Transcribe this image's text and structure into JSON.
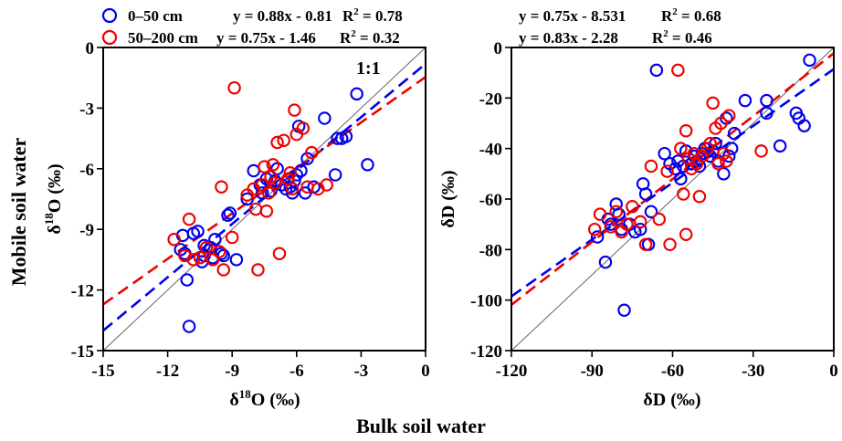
{
  "figure": {
    "shared_ylabel": "Mobile soil water",
    "shared_xlabel": "Bulk soil water"
  },
  "legend": {
    "items": [
      {
        "label": "0–50 cm",
        "color": "#0000ee",
        "equation": "y = 0.88x - 0.81",
        "r2_label": "R",
        "r2_value": " = 0.78"
      },
      {
        "label": "50–200 cm",
        "color": "#ee0000",
        "equation": "y = 0.75x - 1.46",
        "r2_label": "R",
        "r2_value": " = 0.32"
      }
    ]
  },
  "chart_data": [
    {
      "type": "scatter",
      "xlabel": "δ18O (‰)",
      "ylabel": "δ18O (‰)",
      "xlim": [
        -15,
        0
      ],
      "ylim": [
        -15,
        0
      ],
      "xticks": [
        "-15",
        "-12",
        "-9",
        "-6",
        "-3",
        "0"
      ],
      "yticks": [
        "-15",
        "-12",
        "-9",
        "-6",
        "-3",
        "0"
      ],
      "one_to_one_label": "1:1",
      "series": [
        {
          "name": "0–50 cm",
          "color": "#0000ee",
          "fit": {
            "slope": 0.88,
            "intercept": -0.81
          },
          "points": [
            [
              -11.0,
              -13.8
            ],
            [
              -11.1,
              -11.5
            ],
            [
              -11.2,
              -10.2
            ],
            [
              -11.3,
              -9.3
            ],
            [
              -11.4,
              -10.0
            ],
            [
              -10.8,
              -9.2
            ],
            [
              -10.6,
              -9.1
            ],
            [
              -10.4,
              -10.6
            ],
            [
              -10.3,
              -10.3
            ],
            [
              -10.3,
              -9.8
            ],
            [
              -10.0,
              -9.9
            ],
            [
              -9.9,
              -10.4
            ],
            [
              -9.8,
              -9.5
            ],
            [
              -9.5,
              -10.2
            ],
            [
              -9.4,
              -10.3
            ],
            [
              -9.2,
              -8.3
            ],
            [
              -9.1,
              -8.2
            ],
            [
              -8.8,
              -10.5
            ],
            [
              -8.3,
              -7.5
            ],
            [
              -8.0,
              -6.1
            ],
            [
              -7.7,
              -6.8
            ],
            [
              -7.6,
              -7.2
            ],
            [
              -7.4,
              -6.5
            ],
            [
              -7.2,
              -7.1
            ],
            [
              -7.0,
              -6.6
            ],
            [
              -6.9,
              -6.0
            ],
            [
              -6.7,
              -6.8
            ],
            [
              -6.5,
              -7.0
            ],
            [
              -6.3,
              -6.9
            ],
            [
              -6.2,
              -7.2
            ],
            [
              -6.1,
              -6.6
            ],
            [
              -6.0,
              -6.3
            ],
            [
              -5.9,
              -3.9
            ],
            [
              -5.8,
              -6.1
            ],
            [
              -5.6,
              -7.2
            ],
            [
              -5.5,
              -5.5
            ],
            [
              -5.2,
              -6.9
            ],
            [
              -4.7,
              -3.5
            ],
            [
              -4.2,
              -6.3
            ],
            [
              -4.1,
              -4.5
            ],
            [
              -3.9,
              -4.5
            ],
            [
              -3.7,
              -4.4
            ],
            [
              -3.2,
              -2.3
            ],
            [
              -2.7,
              -5.8
            ]
          ]
        },
        {
          "name": "50–200 cm",
          "color": "#ee0000",
          "fit": {
            "slope": 0.75,
            "intercept": -1.46
          },
          "points": [
            [
              -11.7,
              -9.5
            ],
            [
              -11.2,
              -10.3
            ],
            [
              -11.0,
              -8.5
            ],
            [
              -10.8,
              -10.5
            ],
            [
              -10.5,
              -10.4
            ],
            [
              -10.2,
              -9.9
            ],
            [
              -9.9,
              -10.5
            ],
            [
              -9.6,
              -10.1
            ],
            [
              -9.5,
              -6.9
            ],
            [
              -9.4,
              -11.0
            ],
            [
              -9.0,
              -9.4
            ],
            [
              -8.9,
              -2.0
            ],
            [
              -8.3,
              -7.3
            ],
            [
              -8.0,
              -7.0
            ],
            [
              -7.9,
              -8.0
            ],
            [
              -7.8,
              -11.0
            ],
            [
              -7.6,
              -6.8
            ],
            [
              -7.5,
              -5.9
            ],
            [
              -7.4,
              -8.1
            ],
            [
              -7.3,
              -7.2
            ],
            [
              -7.2,
              -6.4
            ],
            [
              -7.1,
              -5.8
            ],
            [
              -7.0,
              -6.7
            ],
            [
              -6.9,
              -4.7
            ],
            [
              -6.8,
              -10.2
            ],
            [
              -6.6,
              -4.6
            ],
            [
              -6.4,
              -6.5
            ],
            [
              -6.3,
              -6.2
            ],
            [
              -6.2,
              -7.0
            ],
            [
              -6.1,
              -3.1
            ],
            [
              -6.0,
              -4.3
            ],
            [
              -5.7,
              -4.0
            ],
            [
              -5.5,
              -6.9
            ],
            [
              -5.3,
              -5.2
            ],
            [
              -5.0,
              -7.0
            ],
            [
              -4.6,
              -6.8
            ]
          ]
        }
      ]
    },
    {
      "type": "scatter",
      "xlabel": "δD (‰)",
      "ylabel": "δD (‰)",
      "xlim": [
        -120,
        0
      ],
      "ylim": [
        -120,
        0
      ],
      "xticks": [
        "-120",
        "-90",
        "-60",
        "-30",
        "0"
      ],
      "yticks": [
        "-120",
        "-100",
        "-80",
        "-60",
        "-40",
        "-20",
        "0"
      ],
      "annotations": [
        {
          "equation": "y = 0.75x - 8.531",
          "r2_label": "R",
          "r2_value": " = 0.68"
        },
        {
          "equation": "y = 0.83x - 2.28",
          "r2_label": "R",
          "r2_value": " = 0.46"
        }
      ],
      "series": [
        {
          "name": "0–50 cm",
          "color": "#0000ee",
          "fit": {
            "slope": 0.75,
            "intercept": -8.531
          },
          "points": [
            [
              -88,
              -75
            ],
            [
              -85,
              -85
            ],
            [
              -84,
              -68
            ],
            [
              -83,
              -70
            ],
            [
              -81,
              -62
            ],
            [
              -80,
              -66
            ],
            [
              -79,
              -72
            ],
            [
              -78,
              -104
            ],
            [
              -76,
              -70
            ],
            [
              -74,
              -73
            ],
            [
              -72,
              -72
            ],
            [
              -71,
              -54
            ],
            [
              -70,
              -58
            ],
            [
              -69,
              -78
            ],
            [
              -68,
              -65
            ],
            [
              -66,
              -9
            ],
            [
              -63,
              -42
            ],
            [
              -61,
              -46
            ],
            [
              -59,
              -48
            ],
            [
              -58,
              -45
            ],
            [
              -57,
              -52
            ],
            [
              -56,
              -47
            ],
            [
              -55,
              -41
            ],
            [
              -53,
              -46
            ],
            [
              -52,
              -43
            ],
            [
              -51,
              -45
            ],
            [
              -50,
              -47
            ],
            [
              -49,
              -42
            ],
            [
              -48,
              -40
            ],
            [
              -46,
              -43
            ],
            [
              -45,
              -41
            ],
            [
              -44,
              -38
            ],
            [
              -43,
              -45
            ],
            [
              -41,
              -50
            ],
            [
              -40,
              -28
            ],
            [
              -39,
              -43
            ],
            [
              -38,
              -40
            ],
            [
              -37,
              -34
            ],
            [
              -33,
              -21
            ],
            [
              -25,
              -21
            ],
            [
              -25,
              -26
            ],
            [
              -20,
              -39
            ],
            [
              -14,
              -26
            ],
            [
              -13,
              -28
            ],
            [
              -11,
              -31
            ],
            [
              -9,
              -5
            ]
          ]
        },
        {
          "name": "50–200 cm",
          "color": "#ee0000",
          "fit": {
            "slope": 0.83,
            "intercept": -2.28
          },
          "points": [
            [
              -89,
              -72
            ],
            [
              -87,
              -66
            ],
            [
              -83,
              -71
            ],
            [
              -81,
              -65
            ],
            [
              -79,
              -73
            ],
            [
              -77,
              -70
            ],
            [
              -75,
              -63
            ],
            [
              -72,
              -69
            ],
            [
              -70,
              -78
            ],
            [
              -68,
              -47
            ],
            [
              -65,
              -68
            ],
            [
              -62,
              -49
            ],
            [
              -61,
              -78
            ],
            [
              -58,
              -9
            ],
            [
              -57,
              -40
            ],
            [
              -56,
              -58
            ],
            [
              -55,
              -74
            ],
            [
              -55,
              -33
            ],
            [
              -54,
              -44
            ],
            [
              -53,
              -48
            ],
            [
              -52,
              -42
            ],
            [
              -51,
              -46
            ],
            [
              -50,
              -59
            ],
            [
              -49,
              -43
            ],
            [
              -47,
              -40
            ],
            [
              -46,
              -38
            ],
            [
              -45,
              -22
            ],
            [
              -44,
              -32
            ],
            [
              -43,
              -46
            ],
            [
              -42,
              -30
            ],
            [
              -41,
              -42
            ],
            [
              -40,
              -45
            ],
            [
              -39,
              -27
            ],
            [
              -27,
              -41
            ]
          ]
        }
      ]
    }
  ]
}
